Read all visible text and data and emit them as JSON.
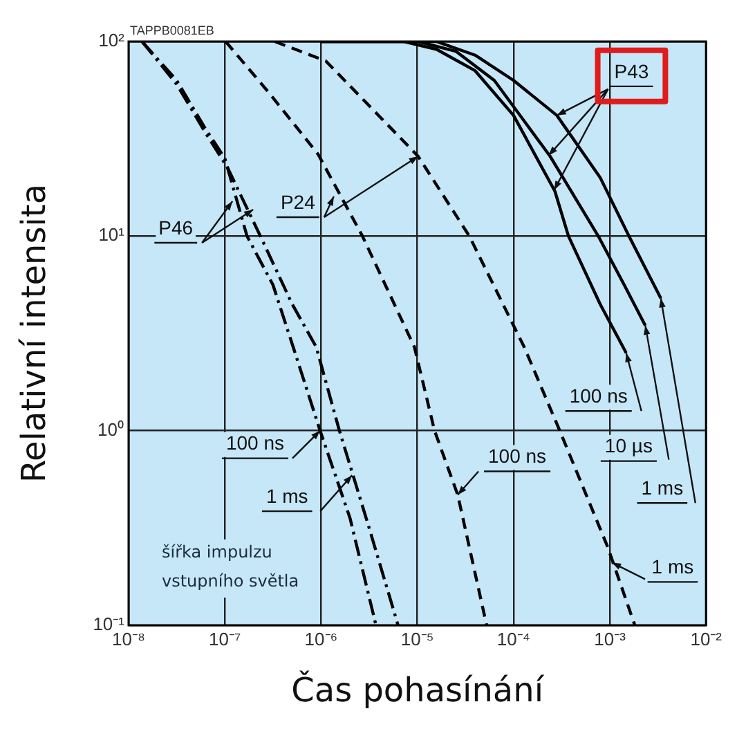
{
  "chart_data": {
    "type": "line",
    "xlabel": "Čas pohasínání",
    "ylabel": "Relativní intensita",
    "log": "xy",
    "grid": true,
    "legend": false,
    "marker": "none",
    "xlim": [
      1e-08,
      0.01
    ],
    "xticks": [
      {
        "value": 1e-08,
        "label": "10⁻⁸"
      },
      {
        "value": 1e-07,
        "label": "10⁻⁷"
      },
      {
        "value": 1e-06,
        "label": "10⁻⁶"
      },
      {
        "value": 1e-05,
        "label": "10⁻⁵"
      },
      {
        "value": 0.0001,
        "label": "10⁻⁴"
      },
      {
        "value": 0.001,
        "label": "10⁻³"
      },
      {
        "value": 0.01,
        "label": "10⁻²"
      }
    ],
    "ylim": [
      0.1,
      100
    ],
    "yticks": [
      {
        "value": 0.1,
        "label": "10⁻¹"
      },
      {
        "value": 1,
        "label": "10⁰"
      },
      {
        "value": 10,
        "label": "10¹"
      },
      {
        "value": 100,
        "label": "10²"
      }
    ],
    "series": [
      {
        "color": "#000000",
        "line_style": "dashdot",
        "x": [
          1.38e-08,
          3.16e-08,
          6.31e-08,
          1e-07,
          1.7e-07,
          3.16e-07,
          5.13e-07,
          9.77e-07,
          2e-06,
          3.72e-06
        ],
        "values": [
          100,
          63.1,
          35.5,
          25.1,
          10,
          5.62,
          2.69,
          1,
          0.355,
          0.1
        ]
      },
      {
        "color": "#000000",
        "line_style": "dashdot",
        "x": [
          1.38e-08,
          3.16e-08,
          6.31e-08,
          1.07e-07,
          2.34e-07,
          5.01e-07,
          8.91e-07,
          1.55e-06,
          3.16e-06,
          6.31e-06
        ],
        "values": [
          100,
          60.3,
          33.9,
          22.4,
          10,
          4.47,
          2.69,
          1,
          0.316,
          0.1
        ]
      },
      {
        "color": "#000000",
        "line_style": "dashed",
        "x": [
          1.02e-07,
          2.95e-07,
          9.33e-07,
          2.69e-06,
          9.33e-06,
          1.51e-05,
          2.63e-05,
          5.25e-05
        ],
        "values": [
          100,
          53.7,
          26.3,
          10,
          2.69,
          1,
          0.468,
          0.1
        ]
      },
      {
        "color": "#000000",
        "line_style": "dashed",
        "x": [
          3.31e-07,
          1.12e-06,
          1.02e-05,
          3.47e-05,
          0.000129,
          0.000302,
          0.000955,
          0.00182
        ],
        "values": [
          100,
          79.4,
          25.7,
          10,
          2.69,
          1,
          0.251,
          0.1
        ]
      },
      {
        "color": "#000000",
        "line_style": "solid",
        "x": [
          1e-06,
          7.24e-06,
          1.58e-05,
          3.98e-05,
          0.0001,
          0.000269,
          0.000372,
          0.000794,
          0.00148
        ],
        "values": [
          100,
          100,
          91.2,
          70.8,
          41.7,
          17.0,
          10,
          4.47,
          2.51
        ]
      },
      {
        "color": "#000000",
        "line_style": "solid",
        "x": [
          1e-06,
          1.02e-05,
          2.51e-05,
          6.31e-05,
          0.00024,
          0.000759,
          0.00141,
          0.00234
        ],
        "values": [
          100,
          100,
          89.1,
          63.1,
          25.7,
          10,
          5.62,
          3.47
        ]
      },
      {
        "color": "#000000",
        "line_style": "solid",
        "x": [
          1e-06,
          1.58e-05,
          3.98e-05,
          0.0001,
          0.000282,
          0.000794,
          0.00158,
          0.00339
        ],
        "values": [
          100,
          100,
          85.1,
          63.1,
          41.7,
          20.0,
          10,
          4.79
        ]
      }
    ],
    "annotations": [
      "TAPPB0081EB",
      {
        "text": "P46",
        "x": 1.2e-07,
        "y": 15.1
      },
      {
        "text": "P24",
        "x": 1.02e-05,
        "y": 25.7
      },
      {
        "text": "P43",
        "x": 0.000282,
        "y": 41.7
      },
      {
        "text": "100 ns",
        "x": 9.77e-07,
        "y": 1
      },
      {
        "text": "1 ms",
        "x": 2.1e-06,
        "y": 0.59
      },
      {
        "text": "100 ns",
        "x": 2.63e-05,
        "y": 0.468
      },
      {
        "text": "1 ms",
        "x": 0.00105,
        "y": 0.21
      },
      {
        "text": "100 ns",
        "x": 0.00148,
        "y": 2.51
      },
      {
        "text": "10 µs",
        "x": 0.00234,
        "y": 3.47
      },
      {
        "text": "1 ms",
        "x": 0.00339,
        "y": 4.79
      },
      "šířka impulzu\nvstupního světla"
    ]
  }
}
